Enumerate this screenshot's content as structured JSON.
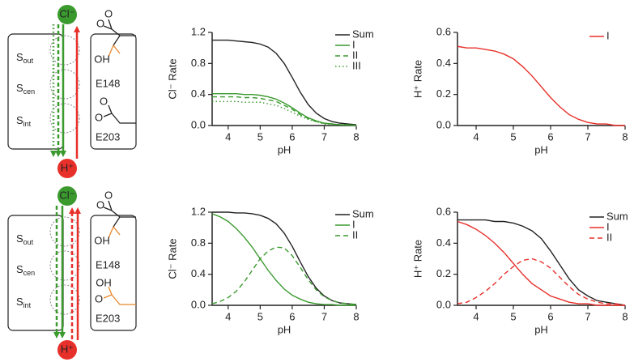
{
  "chart_data": [
    {
      "type": "line",
      "x_label": "pH",
      "y_label": "Cl⁻ Rate",
      "x": [
        3.5,
        3.75,
        4,
        4.25,
        4.5,
        4.75,
        5,
        5.25,
        5.5,
        5.75,
        6,
        6.25,
        6.5,
        6.75,
        7,
        7.25,
        7.5,
        7.75,
        8
      ],
      "xlim": [
        3.5,
        8
      ],
      "xticks": [
        4,
        5,
        6,
        7,
        8
      ],
      "ylim": [
        0,
        1.2
      ],
      "yticks": [
        {
          "value": 0,
          "label": "0.0"
        },
        {
          "value": 0.4,
          "label": "0.4"
        },
        {
          "value": 0.8,
          "label": "0.8"
        },
        {
          "value": 1.2,
          "label": "1.2"
        }
      ],
      "legend": "upper right",
      "series": [
        {
          "name": "Sum",
          "color": "#222222",
          "dash": "solid",
          "values": [
            1.1,
            1.1,
            1.1,
            1.09,
            1.08,
            1.07,
            1.05,
            1.01,
            0.93,
            0.8,
            0.62,
            0.43,
            0.27,
            0.16,
            0.09,
            0.05,
            0.03,
            0.02,
            0.01
          ]
        },
        {
          "name": "I",
          "color": "#3a9a2e",
          "dash": "solid",
          "values": [
            0.41,
            0.41,
            0.41,
            0.41,
            0.4,
            0.4,
            0.39,
            0.37,
            0.34,
            0.29,
            0.23,
            0.16,
            0.1,
            0.06,
            0.03,
            0.02,
            0.01,
            0.01,
            0
          ]
        },
        {
          "name": "II",
          "color": "#3a9a2e",
          "dash": "dashed",
          "values": [
            0.37,
            0.37,
            0.37,
            0.37,
            0.36,
            0.36,
            0.35,
            0.33,
            0.31,
            0.26,
            0.21,
            0.14,
            0.09,
            0.05,
            0.03,
            0.02,
            0.01,
            0.01,
            0
          ]
        },
        {
          "name": "III",
          "color": "#3a9a2e",
          "dash": "dotted",
          "values": [
            0.31,
            0.31,
            0.31,
            0.31,
            0.3,
            0.3,
            0.3,
            0.28,
            0.26,
            0.22,
            0.17,
            0.12,
            0.08,
            0.05,
            0.02,
            0.01,
            0.01,
            0,
            0
          ]
        }
      ]
    },
    {
      "type": "line",
      "x_label": "pH",
      "y_label": "H⁺ Rate",
      "x": [
        3.5,
        3.75,
        4,
        4.25,
        4.5,
        4.75,
        5,
        5.25,
        5.5,
        5.75,
        6,
        6.25,
        6.5,
        6.75,
        7,
        7.25,
        7.5,
        7.75,
        8
      ],
      "xlim": [
        3.5,
        8
      ],
      "xticks": [
        4,
        5,
        6,
        7,
        8
      ],
      "ylim": [
        0,
        0.6
      ],
      "yticks": [
        {
          "value": 0,
          "label": "0.0"
        },
        {
          "value": 0.2,
          "label": "0.2"
        },
        {
          "value": 0.4,
          "label": "0.4"
        },
        {
          "value": 0.6,
          "label": "0.6"
        }
      ],
      "legend": "upper right",
      "series": [
        {
          "name": "I",
          "color": "#e8302a",
          "dash": "solid",
          "values": [
            0.51,
            0.5,
            0.5,
            0.49,
            0.48,
            0.46,
            0.43,
            0.38,
            0.32,
            0.25,
            0.18,
            0.12,
            0.07,
            0.04,
            0.02,
            0.01,
            0.01,
            0,
            0
          ]
        }
      ]
    },
    {
      "type": "line",
      "x_label": "pH",
      "y_label": "Cl⁻ Rate",
      "x": [
        3.5,
        3.75,
        4,
        4.25,
        4.5,
        4.75,
        5,
        5.25,
        5.5,
        5.75,
        6,
        6.25,
        6.5,
        6.75,
        7,
        7.25,
        7.5,
        7.75,
        8
      ],
      "xlim": [
        3.5,
        8
      ],
      "xticks": [
        4,
        5,
        6,
        7,
        8
      ],
      "ylim": [
        0,
        1.2
      ],
      "yticks": [
        {
          "value": 0,
          "label": "0.0"
        },
        {
          "value": 0.4,
          "label": "0.4"
        },
        {
          "value": 0.8,
          "label": "0.8"
        },
        {
          "value": 1.2,
          "label": "1.2"
        }
      ],
      "legend": "upper right",
      "series": [
        {
          "name": "Sum",
          "color": "#222222",
          "dash": "solid",
          "values": [
            1.2,
            1.2,
            1.2,
            1.19,
            1.19,
            1.18,
            1.16,
            1.12,
            1.05,
            0.93,
            0.76,
            0.56,
            0.37,
            0.22,
            0.12,
            0.06,
            0.03,
            0.02,
            0.01
          ]
        },
        {
          "name": "I",
          "color": "#3a9a2e",
          "dash": "solid",
          "values": [
            1.18,
            1.14,
            1.08,
            0.99,
            0.88,
            0.75,
            0.6,
            0.45,
            0.32,
            0.21,
            0.13,
            0.08,
            0.04,
            0.02,
            0.01,
            0.01,
            0,
            0,
            0
          ]
        },
        {
          "name": "II",
          "color": "#3a9a2e",
          "dash": "dashed",
          "values": [
            0.02,
            0.05,
            0.1,
            0.18,
            0.3,
            0.45,
            0.6,
            0.7,
            0.75,
            0.74,
            0.64,
            0.49,
            0.33,
            0.2,
            0.11,
            0.06,
            0.03,
            0.02,
            0.01
          ]
        }
      ]
    },
    {
      "type": "line",
      "x_label": "pH",
      "y_label": "H⁺ Rate",
      "x": [
        3.5,
        3.75,
        4,
        4.25,
        4.5,
        4.75,
        5,
        5.25,
        5.5,
        5.75,
        6,
        6.25,
        6.5,
        6.75,
        7,
        7.25,
        7.5,
        7.75,
        8
      ],
      "xlim": [
        3.5,
        8
      ],
      "xticks": [
        4,
        5,
        6,
        7,
        8
      ],
      "ylim": [
        0,
        0.6
      ],
      "yticks": [
        {
          "value": 0,
          "label": "0.0"
        },
        {
          "value": 0.2,
          "label": "0.2"
        },
        {
          "value": 0.4,
          "label": "0.4"
        },
        {
          "value": 0.6,
          "label": "0.6"
        }
      ],
      "legend": "upper right",
      "series": [
        {
          "name": "Sum",
          "color": "#222222",
          "dash": "solid",
          "values": [
            0.55,
            0.55,
            0.55,
            0.55,
            0.54,
            0.54,
            0.53,
            0.51,
            0.48,
            0.43,
            0.35,
            0.26,
            0.17,
            0.1,
            0.06,
            0.03,
            0.02,
            0.01,
            0
          ]
        },
        {
          "name": "I",
          "color": "#e8302a",
          "dash": "solid",
          "values": [
            0.54,
            0.52,
            0.49,
            0.45,
            0.4,
            0.34,
            0.27,
            0.2,
            0.14,
            0.1,
            0.06,
            0.04,
            0.02,
            0.01,
            0.01,
            0,
            0,
            0,
            0
          ]
        },
        {
          "name": "II",
          "color": "#e8302a",
          "dash": "dashed",
          "values": [
            0.01,
            0.02,
            0.05,
            0.09,
            0.14,
            0.2,
            0.25,
            0.29,
            0.3,
            0.28,
            0.24,
            0.18,
            0.12,
            0.07,
            0.04,
            0.02,
            0.01,
            0.01,
            0
          ]
        }
      ]
    }
  ],
  "diagrams": [
    {
      "chloride": "Cl⁻",
      "proton": "H⁺",
      "sites": [
        {
          "main": "S",
          "sub": "out"
        },
        {
          "main": "S",
          "sub": "cen"
        },
        {
          "main": "S",
          "sub": "int"
        }
      ],
      "residues": [
        "E148",
        "E203"
      ],
      "atoms": [
        {
          "text": "O",
          "color": "#222222"
        },
        {
          "text": "O",
          "color": "#222222"
        },
        {
          "text": "OH",
          "color": "#e8862a"
        },
        {
          "text": "O",
          "color": "#222222"
        },
        {
          "text": "O",
          "color": "#222222"
        }
      ]
    },
    {
      "chloride": "Cl⁻",
      "proton": "H⁺",
      "sites": [
        {
          "main": "S",
          "sub": "out"
        },
        {
          "main": "S",
          "sub": "cen"
        },
        {
          "main": "S",
          "sub": "int"
        }
      ],
      "residues": [
        "E148",
        "E203"
      ],
      "atoms": [
        {
          "text": "O",
          "color": "#222222"
        },
        {
          "text": "O",
          "color": "#222222"
        },
        {
          "text": "OH",
          "color": "#e8862a"
        },
        {
          "text": "OH",
          "color": "#e8862a"
        },
        {
          "text": "O",
          "color": "#e8862a"
        }
      ]
    }
  ]
}
